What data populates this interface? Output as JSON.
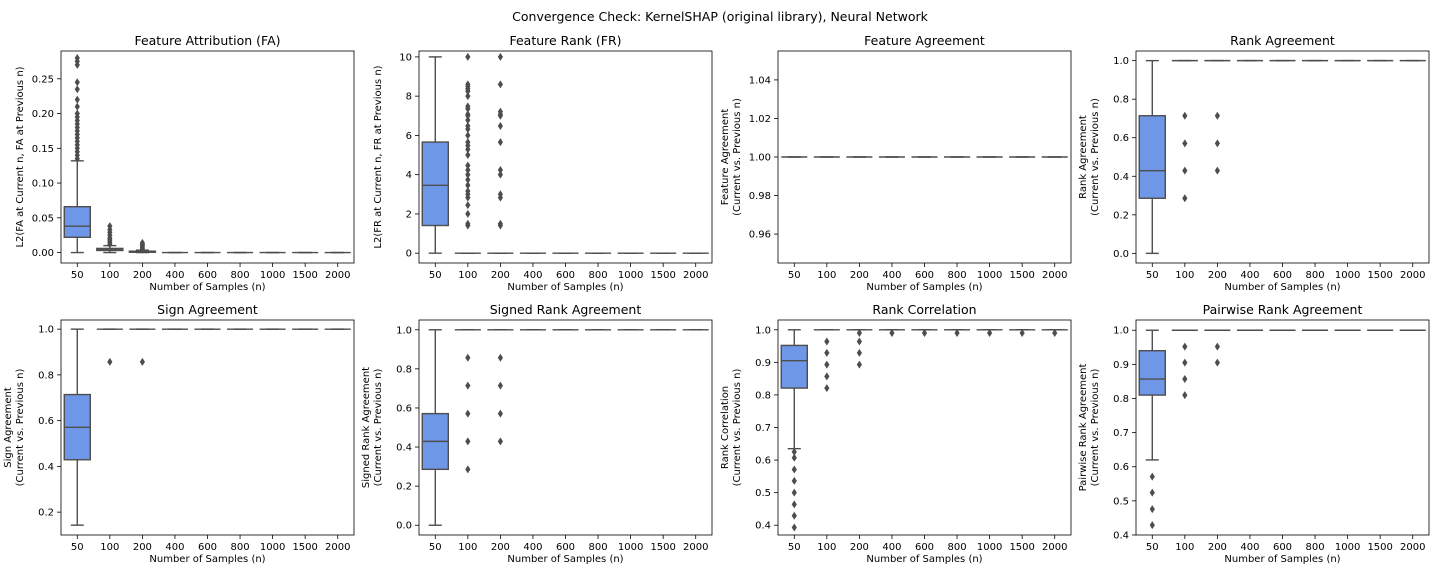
{
  "suptitle": "Convergence Check: KernelSHAP (original library), Neural Network",
  "colors": {
    "box_fill": "#6f97e8",
    "line": "#4d4d4d"
  },
  "chart_data": [
    {
      "type": "box",
      "title": "Feature Attribution (FA)",
      "xlabel": "Number of Samples (n)",
      "ylabel": [
        "L2(FA at Current n, FA at Previous n)"
      ],
      "categories": [
        "50",
        "100",
        "200",
        "400",
        "600",
        "800",
        "1000",
        "1500",
        "2000"
      ],
      "ylim": [
        -0.015,
        0.29
      ],
      "yticks": [
        0.0,
        0.05,
        0.1,
        0.15,
        0.2,
        0.25
      ],
      "yticklabels": [
        "0.00",
        "0.05",
        "0.10",
        "0.15",
        "0.20",
        "0.25"
      ],
      "boxes": [
        {
          "q1": 0.022,
          "median": 0.038,
          "q3": 0.066,
          "wlo": 0.0,
          "whi": 0.132,
          "outliers": [
            0.135,
            0.14,
            0.145,
            0.15,
            0.155,
            0.16,
            0.165,
            0.17,
            0.175,
            0.18,
            0.185,
            0.19,
            0.195,
            0.2,
            0.21,
            0.22,
            0.235,
            0.245,
            0.27,
            0.275,
            0.28
          ]
        },
        {
          "q1": 0.003,
          "median": 0.004,
          "q3": 0.006,
          "wlo": 0.0,
          "whi": 0.01,
          "outliers": [
            0.012,
            0.015,
            0.018,
            0.021,
            0.025,
            0.029,
            0.033,
            0.038
          ]
        },
        {
          "q1": 0.0005,
          "median": 0.001,
          "q3": 0.002,
          "wlo": 0.0,
          "whi": 0.0035,
          "outliers": [
            0.004,
            0.006,
            0.008,
            0.01,
            0.012,
            0.014
          ]
        },
        {
          "q1": 0,
          "median": 0,
          "q3": 0,
          "wlo": 0,
          "whi": 0,
          "outliers": []
        },
        {
          "q1": 0,
          "median": 0,
          "q3": 0,
          "wlo": 0,
          "whi": 0,
          "outliers": []
        },
        {
          "q1": 0,
          "median": 0,
          "q3": 0,
          "wlo": 0,
          "whi": 0,
          "outliers": []
        },
        {
          "q1": 0,
          "median": 0,
          "q3": 0,
          "wlo": 0,
          "whi": 0,
          "outliers": []
        },
        {
          "q1": 0,
          "median": 0,
          "q3": 0,
          "wlo": 0,
          "whi": 0,
          "outliers": []
        },
        {
          "q1": 0,
          "median": 0,
          "q3": 0,
          "wlo": 0,
          "whi": 0,
          "outliers": []
        }
      ]
    },
    {
      "type": "box",
      "title": "Feature Rank (FR)",
      "xlabel": "Number of Samples (n)",
      "ylabel": [
        "L2(FR at Current n, FR at Previous n)"
      ],
      "categories": [
        "50",
        "100",
        "200",
        "400",
        "600",
        "800",
        "1000",
        "1500",
        "2000"
      ],
      "ylim": [
        -0.5,
        10.3
      ],
      "yticks": [
        0,
        2,
        4,
        6,
        8,
        10
      ],
      "yticklabels": [
        "0",
        "2",
        "4",
        "6",
        "8",
        "10"
      ],
      "boxes": [
        {
          "q1": 1.41,
          "median": 3.46,
          "q3": 5.66,
          "wlo": 0.0,
          "whi": 10.0,
          "outliers": []
        },
        {
          "q1": 0,
          "median": 0,
          "q3": 0,
          "wlo": 0,
          "whi": 0,
          "outliers": [
            1.41,
            1.5,
            2.0,
            2.45,
            2.83,
            3.0,
            3.16,
            3.46,
            3.74,
            4.0,
            4.24,
            4.47,
            5.0,
            5.29,
            5.48,
            5.66,
            6.0,
            6.32,
            6.48,
            6.78,
            7.0,
            7.07,
            7.35,
            7.48,
            8.0,
            8.25,
            8.37,
            8.49,
            8.6,
            10.0
          ]
        },
        {
          "q1": 0,
          "median": 0,
          "q3": 0,
          "wlo": 0,
          "whi": 0,
          "outliers": [
            1.41,
            1.5,
            2.83,
            3.0,
            4.0,
            4.24,
            5.66,
            6.48,
            7.0,
            7.07,
            7.21,
            8.6,
            10.0
          ]
        },
        {
          "q1": 0,
          "median": 0,
          "q3": 0,
          "wlo": 0,
          "whi": 0,
          "outliers": []
        },
        {
          "q1": 0,
          "median": 0,
          "q3": 0,
          "wlo": 0,
          "whi": 0,
          "outliers": []
        },
        {
          "q1": 0,
          "median": 0,
          "q3": 0,
          "wlo": 0,
          "whi": 0,
          "outliers": []
        },
        {
          "q1": 0,
          "median": 0,
          "q3": 0,
          "wlo": 0,
          "whi": 0,
          "outliers": []
        },
        {
          "q1": 0,
          "median": 0,
          "q3": 0,
          "wlo": 0,
          "whi": 0,
          "outliers": []
        },
        {
          "q1": 0,
          "median": 0,
          "q3": 0,
          "wlo": 0,
          "whi": 0,
          "outliers": []
        }
      ]
    },
    {
      "type": "box",
      "title": "Feature Agreement",
      "xlabel": "Number of Samples (n)",
      "ylabel": [
        "Feature Agreement",
        "(Current vs. Previous n)"
      ],
      "categories": [
        "50",
        "100",
        "200",
        "400",
        "600",
        "800",
        "1000",
        "1500",
        "2000"
      ],
      "ylim": [
        0.945,
        1.055
      ],
      "yticks": [
        0.96,
        0.98,
        1.0,
        1.02,
        1.04
      ],
      "yticklabels": [
        "0.96",
        "0.98",
        "1.00",
        "1.02",
        "1.04"
      ],
      "boxes": [
        {
          "q1": 1,
          "median": 1,
          "q3": 1,
          "wlo": 1,
          "whi": 1,
          "outliers": []
        },
        {
          "q1": 1,
          "median": 1,
          "q3": 1,
          "wlo": 1,
          "whi": 1,
          "outliers": []
        },
        {
          "q1": 1,
          "median": 1,
          "q3": 1,
          "wlo": 1,
          "whi": 1,
          "outliers": []
        },
        {
          "q1": 1,
          "median": 1,
          "q3": 1,
          "wlo": 1,
          "whi": 1,
          "outliers": []
        },
        {
          "q1": 1,
          "median": 1,
          "q3": 1,
          "wlo": 1,
          "whi": 1,
          "outliers": []
        },
        {
          "q1": 1,
          "median": 1,
          "q3": 1,
          "wlo": 1,
          "whi": 1,
          "outliers": []
        },
        {
          "q1": 1,
          "median": 1,
          "q3": 1,
          "wlo": 1,
          "whi": 1,
          "outliers": []
        },
        {
          "q1": 1,
          "median": 1,
          "q3": 1,
          "wlo": 1,
          "whi": 1,
          "outliers": []
        },
        {
          "q1": 1,
          "median": 1,
          "q3": 1,
          "wlo": 1,
          "whi": 1,
          "outliers": []
        }
      ]
    },
    {
      "type": "box",
      "title": "Rank Agreement",
      "xlabel": "Number of Samples (n)",
      "ylabel": [
        "Rank Agreement",
        "(Current vs. Previous n)"
      ],
      "categories": [
        "50",
        "100",
        "200",
        "400",
        "600",
        "800",
        "1000",
        "1500",
        "2000"
      ],
      "ylim": [
        -0.05,
        1.05
      ],
      "yticks": [
        0.0,
        0.2,
        0.4,
        0.6,
        0.8,
        1.0
      ],
      "yticklabels": [
        "0.0",
        "0.2",
        "0.4",
        "0.6",
        "0.8",
        "1.0"
      ],
      "boxes": [
        {
          "q1": 0.286,
          "median": 0.429,
          "q3": 0.714,
          "wlo": 0.0,
          "whi": 1.0,
          "outliers": []
        },
        {
          "q1": 1,
          "median": 1,
          "q3": 1,
          "wlo": 1,
          "whi": 1,
          "outliers": [
            0.286,
            0.429,
            0.571,
            0.714
          ]
        },
        {
          "q1": 1,
          "median": 1,
          "q3": 1,
          "wlo": 1,
          "whi": 1,
          "outliers": [
            0.429,
            0.571,
            0.714
          ]
        },
        {
          "q1": 1,
          "median": 1,
          "q3": 1,
          "wlo": 1,
          "whi": 1,
          "outliers": []
        },
        {
          "q1": 1,
          "median": 1,
          "q3": 1,
          "wlo": 1,
          "whi": 1,
          "outliers": []
        },
        {
          "q1": 1,
          "median": 1,
          "q3": 1,
          "wlo": 1,
          "whi": 1,
          "outliers": []
        },
        {
          "q1": 1,
          "median": 1,
          "q3": 1,
          "wlo": 1,
          "whi": 1,
          "outliers": []
        },
        {
          "q1": 1,
          "median": 1,
          "q3": 1,
          "wlo": 1,
          "whi": 1,
          "outliers": []
        },
        {
          "q1": 1,
          "median": 1,
          "q3": 1,
          "wlo": 1,
          "whi": 1,
          "outliers": []
        }
      ]
    },
    {
      "type": "box",
      "title": "Sign Agreement",
      "xlabel": "Number of Samples (n)",
      "ylabel": [
        "Sign Agreement",
        "(Current vs. Previous n)"
      ],
      "categories": [
        "50",
        "100",
        "200",
        "400",
        "600",
        "800",
        "1000",
        "1500",
        "2000"
      ],
      "ylim": [
        0.1,
        1.04
      ],
      "yticks": [
        0.2,
        0.4,
        0.6,
        0.8,
        1.0
      ],
      "yticklabels": [
        "0.2",
        "0.4",
        "0.6",
        "0.8",
        "1.0"
      ],
      "boxes": [
        {
          "q1": 0.429,
          "median": 0.571,
          "q3": 0.714,
          "wlo": 0.143,
          "whi": 1.0,
          "outliers": []
        },
        {
          "q1": 1,
          "median": 1,
          "q3": 1,
          "wlo": 1,
          "whi": 1,
          "outliers": [
            0.857
          ]
        },
        {
          "q1": 1,
          "median": 1,
          "q3": 1,
          "wlo": 1,
          "whi": 1,
          "outliers": [
            0.857
          ]
        },
        {
          "q1": 1,
          "median": 1,
          "q3": 1,
          "wlo": 1,
          "whi": 1,
          "outliers": []
        },
        {
          "q1": 1,
          "median": 1,
          "q3": 1,
          "wlo": 1,
          "whi": 1,
          "outliers": []
        },
        {
          "q1": 1,
          "median": 1,
          "q3": 1,
          "wlo": 1,
          "whi": 1,
          "outliers": []
        },
        {
          "q1": 1,
          "median": 1,
          "q3": 1,
          "wlo": 1,
          "whi": 1,
          "outliers": []
        },
        {
          "q1": 1,
          "median": 1,
          "q3": 1,
          "wlo": 1,
          "whi": 1,
          "outliers": []
        },
        {
          "q1": 1,
          "median": 1,
          "q3": 1,
          "wlo": 1,
          "whi": 1,
          "outliers": []
        }
      ]
    },
    {
      "type": "box",
      "title": "Signed Rank Agreement",
      "xlabel": "Number of Samples (n)",
      "ylabel": [
        "Signed Rank Agreement",
        "(Current vs. Previous n)"
      ],
      "categories": [
        "50",
        "100",
        "200",
        "400",
        "600",
        "800",
        "1000",
        "1500",
        "2000"
      ],
      "ylim": [
        -0.05,
        1.05
      ],
      "yticks": [
        0.0,
        0.2,
        0.4,
        0.6,
        0.8,
        1.0
      ],
      "yticklabels": [
        "0.0",
        "0.2",
        "0.4",
        "0.6",
        "0.8",
        "1.0"
      ],
      "boxes": [
        {
          "q1": 0.286,
          "median": 0.429,
          "q3": 0.571,
          "wlo": 0.0,
          "whi": 1.0,
          "outliers": []
        },
        {
          "q1": 1,
          "median": 1,
          "q3": 1,
          "wlo": 1,
          "whi": 1,
          "outliers": [
            0.286,
            0.429,
            0.571,
            0.714,
            0.857
          ]
        },
        {
          "q1": 1,
          "median": 1,
          "q3": 1,
          "wlo": 1,
          "whi": 1,
          "outliers": [
            0.429,
            0.571,
            0.714,
            0.857
          ]
        },
        {
          "q1": 1,
          "median": 1,
          "q3": 1,
          "wlo": 1,
          "whi": 1,
          "outliers": []
        },
        {
          "q1": 1,
          "median": 1,
          "q3": 1,
          "wlo": 1,
          "whi": 1,
          "outliers": []
        },
        {
          "q1": 1,
          "median": 1,
          "q3": 1,
          "wlo": 1,
          "whi": 1,
          "outliers": []
        },
        {
          "q1": 1,
          "median": 1,
          "q3": 1,
          "wlo": 1,
          "whi": 1,
          "outliers": []
        },
        {
          "q1": 1,
          "median": 1,
          "q3": 1,
          "wlo": 1,
          "whi": 1,
          "outliers": []
        },
        {
          "q1": 1,
          "median": 1,
          "q3": 1,
          "wlo": 1,
          "whi": 1,
          "outliers": []
        }
      ]
    },
    {
      "type": "box",
      "title": "Rank Correlation",
      "xlabel": "Number of Samples (n)",
      "ylabel": [
        "Rank Correlation",
        "(Current vs. Previous n)"
      ],
      "categories": [
        "50",
        "100",
        "200",
        "400",
        "600",
        "800",
        "1000",
        "1500",
        "2000"
      ],
      "ylim": [
        0.37,
        1.03
      ],
      "yticks": [
        0.4,
        0.5,
        0.6,
        0.7,
        0.8,
        0.9,
        1.0
      ],
      "yticklabels": [
        "0.4",
        "0.5",
        "0.6",
        "0.7",
        "0.8",
        "0.9",
        "1.0"
      ],
      "boxes": [
        {
          "q1": 0.821,
          "median": 0.905,
          "q3": 0.952,
          "wlo": 0.635,
          "whi": 1.0,
          "outliers": [
            0.393,
            0.429,
            0.464,
            0.5,
            0.536,
            0.571,
            0.607,
            0.625
          ]
        },
        {
          "q1": 1,
          "median": 1,
          "q3": 1,
          "wlo": 1,
          "whi": 1,
          "outliers": [
            0.821,
            0.857,
            0.893,
            0.929,
            0.964
          ]
        },
        {
          "q1": 1,
          "median": 1,
          "q3": 1,
          "wlo": 1,
          "whi": 1,
          "outliers": [
            0.893,
            0.929,
            0.964,
            0.99
          ]
        },
        {
          "q1": 1,
          "median": 1,
          "q3": 1,
          "wlo": 1,
          "whi": 1,
          "outliers": [
            0.99
          ]
        },
        {
          "q1": 1,
          "median": 1,
          "q3": 1,
          "wlo": 1,
          "whi": 1,
          "outliers": [
            0.99
          ]
        },
        {
          "q1": 1,
          "median": 1,
          "q3": 1,
          "wlo": 1,
          "whi": 1,
          "outliers": [
            0.99
          ]
        },
        {
          "q1": 1,
          "median": 1,
          "q3": 1,
          "wlo": 1,
          "whi": 1,
          "outliers": [
            0.99
          ]
        },
        {
          "q1": 1,
          "median": 1,
          "q3": 1,
          "wlo": 1,
          "whi": 1,
          "outliers": [
            0.99
          ]
        },
        {
          "q1": 1,
          "median": 1,
          "q3": 1,
          "wlo": 1,
          "whi": 1,
          "outliers": [
            0.99
          ]
        }
      ]
    },
    {
      "type": "box",
      "title": "Pairwise Rank Agreement",
      "xlabel": "Number of Samples (n)",
      "ylabel": [
        "Pairwise Rank Agreement",
        "(Current vs. Previous n)"
      ],
      "categories": [
        "50",
        "100",
        "200",
        "400",
        "600",
        "800",
        "1000",
        "1500",
        "2000"
      ],
      "ylim": [
        0.4,
        1.03
      ],
      "yticks": [
        0.4,
        0.5,
        0.6,
        0.7,
        0.8,
        0.9,
        1.0
      ],
      "yticklabels": [
        "0.4",
        "0.5",
        "0.6",
        "0.7",
        "0.8",
        "0.9",
        "1.0"
      ],
      "boxes": [
        {
          "q1": 0.81,
          "median": 0.857,
          "q3": 0.94,
          "wlo": 0.62,
          "whi": 1.0,
          "outliers": [
            0.429,
            0.476,
            0.524,
            0.571
          ]
        },
        {
          "q1": 1,
          "median": 1,
          "q3": 1,
          "wlo": 1,
          "whi": 1,
          "outliers": [
            0.81,
            0.857,
            0.905,
            0.952
          ]
        },
        {
          "q1": 1,
          "median": 1,
          "q3": 1,
          "wlo": 1,
          "whi": 1,
          "outliers": [
            0.905,
            0.952
          ]
        },
        {
          "q1": 1,
          "median": 1,
          "q3": 1,
          "wlo": 1,
          "whi": 1,
          "outliers": []
        },
        {
          "q1": 1,
          "median": 1,
          "q3": 1,
          "wlo": 1,
          "whi": 1,
          "outliers": []
        },
        {
          "q1": 1,
          "median": 1,
          "q3": 1,
          "wlo": 1,
          "whi": 1,
          "outliers": []
        },
        {
          "q1": 1,
          "median": 1,
          "q3": 1,
          "wlo": 1,
          "whi": 1,
          "outliers": []
        },
        {
          "q1": 1,
          "median": 1,
          "q3": 1,
          "wlo": 1,
          "whi": 1,
          "outliers": []
        },
        {
          "q1": 1,
          "median": 1,
          "q3": 1,
          "wlo": 1,
          "whi": 1,
          "outliers": []
        }
      ]
    }
  ]
}
